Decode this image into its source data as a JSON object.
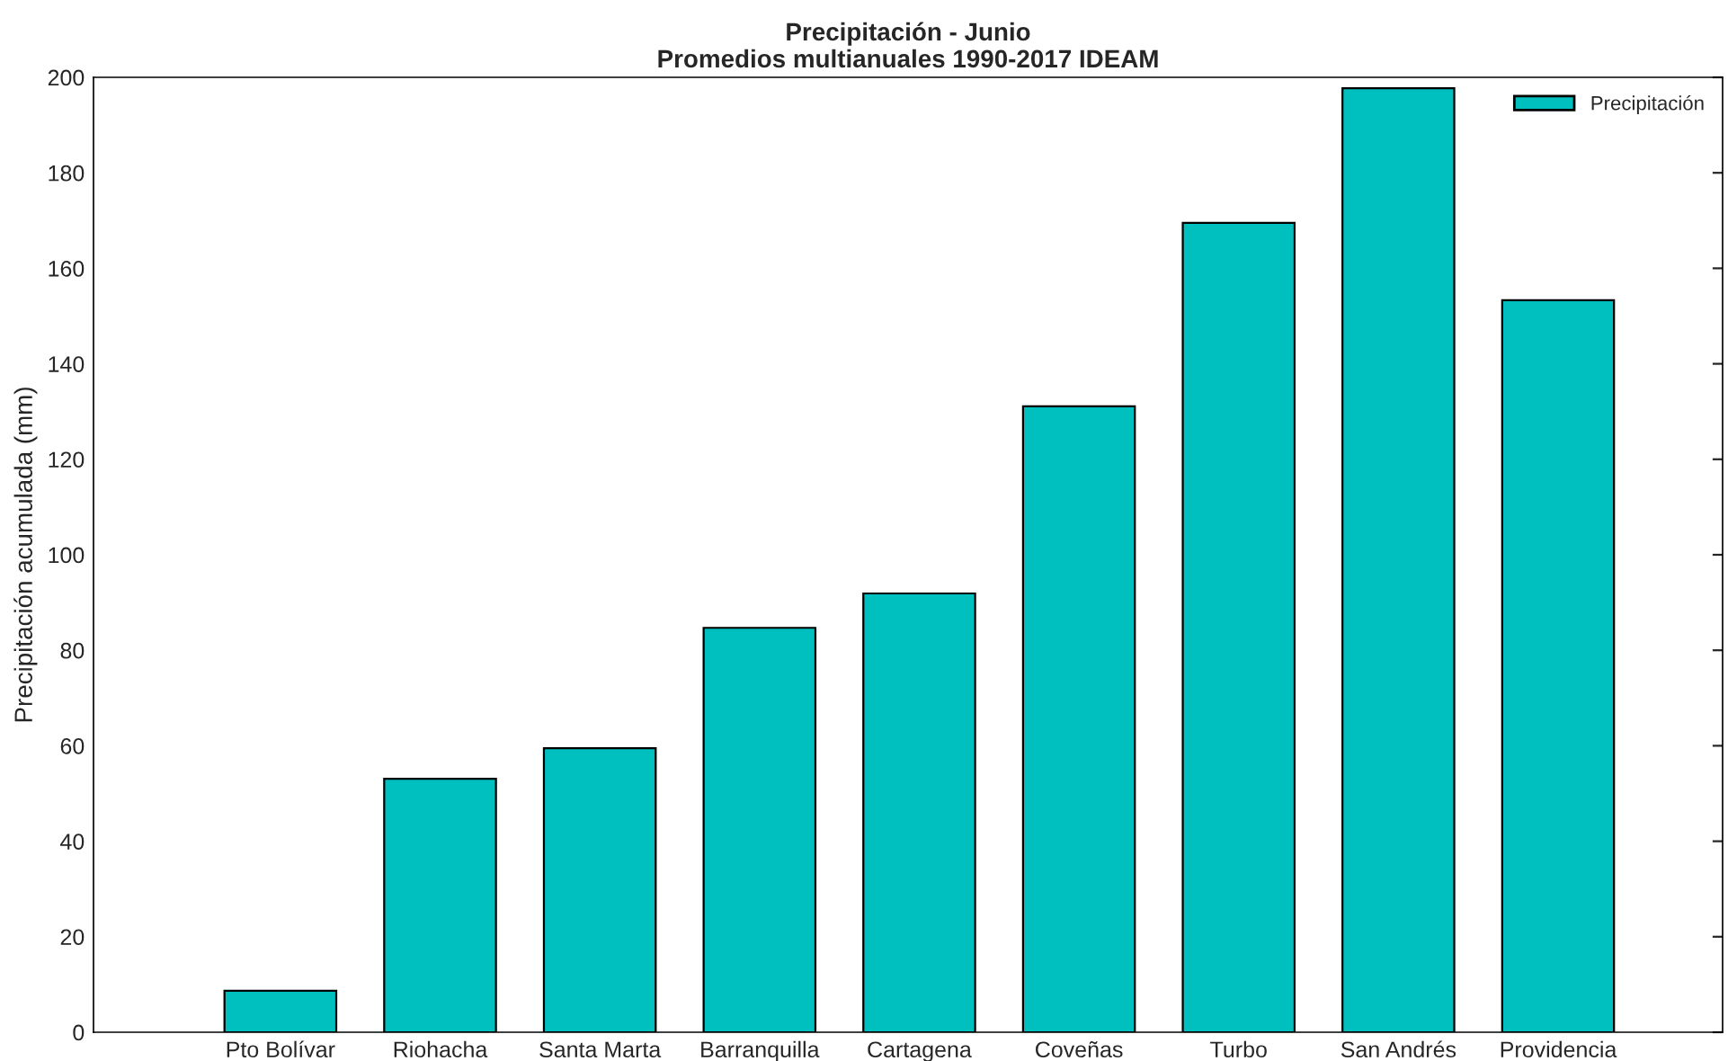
{
  "chart_data": {
    "type": "bar",
    "title": "Precipitación - Junio\nPromedios multianuales 1990-2017 IDEAM",
    "ylabel": "Precipitación acumulada (mm)",
    "categories": [
      "Pto Bolívar",
      "Riohacha",
      "Santa Marta",
      "Barranquilla",
      "Cartagena",
      "Coveñas",
      "Turbo",
      "San Andrés",
      "Providencia"
    ],
    "series": [
      {
        "name": "Precipitación",
        "color": "#00bfbf",
        "values": [
          8.7,
          53.1,
          59.5,
          84.7,
          91.9,
          131.1,
          169.5,
          197.7,
          153.3
        ]
      }
    ],
    "ylim": [
      0,
      200
    ],
    "yticks": [
      0,
      20,
      40,
      60,
      80,
      100,
      120,
      140,
      160,
      180,
      200
    ],
    "grid": false,
    "legend": "top right"
  }
}
